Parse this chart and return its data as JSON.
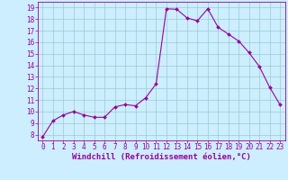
{
  "x": [
    0,
    1,
    2,
    3,
    4,
    5,
    6,
    7,
    8,
    9,
    10,
    11,
    12,
    13,
    14,
    15,
    16,
    17,
    18,
    19,
    20,
    21,
    22,
    23
  ],
  "y": [
    7.8,
    9.2,
    9.7,
    10.0,
    9.7,
    9.5,
    9.5,
    10.4,
    10.6,
    10.5,
    11.2,
    12.4,
    18.9,
    18.85,
    18.1,
    17.85,
    18.9,
    17.3,
    16.7,
    16.1,
    15.1,
    13.9,
    12.1,
    10.6
  ],
  "line_color": "#990099",
  "marker": "D",
  "marker_size": 2.0,
  "bg_color": "#cceeff",
  "grid_color": "#99cccc",
  "xlabel": "Windchill (Refroidissement éolien,°C)",
  "xlim": [
    -0.5,
    23.5
  ],
  "ylim": [
    7.5,
    19.5
  ],
  "yticks": [
    8,
    9,
    10,
    11,
    12,
    13,
    14,
    15,
    16,
    17,
    18,
    19
  ],
  "xticks": [
    0,
    1,
    2,
    3,
    4,
    5,
    6,
    7,
    8,
    9,
    10,
    11,
    12,
    13,
    14,
    15,
    16,
    17,
    18,
    19,
    20,
    21,
    22,
    23
  ],
  "tick_color": "#990099",
  "label_color": "#990099",
  "font_size_tick": 5.5,
  "font_size_label": 6.5
}
